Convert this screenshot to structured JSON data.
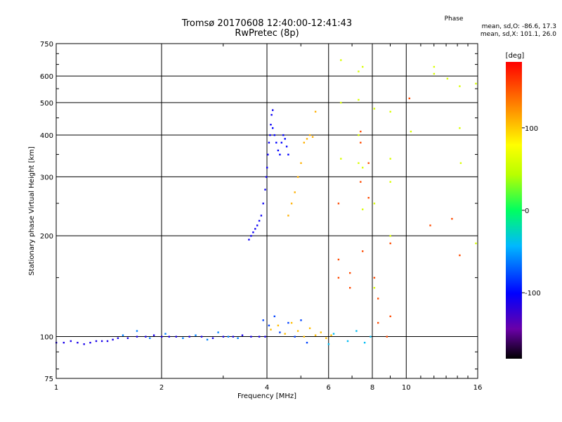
{
  "chart_data": {
    "type": "scatter",
    "title": "Tromsø 20170608 12:40:00-12:41:43",
    "subtitle": "RwPretec (8p)",
    "xlabel": "Frequency [MHz]",
    "ylabel": "Stationary phase Virtual Height [km]",
    "x_scale": "log",
    "y_scale": "log",
    "xlim": [
      1,
      16
    ],
    "ylim": [
      75,
      750
    ],
    "x_ticks": [
      1,
      2,
      4,
      6,
      8,
      10,
      16
    ],
    "x_tick_labels": [
      "1",
      "2",
      "4",
      "6",
      "8",
      "10",
      "16"
    ],
    "y_ticks": [
      75,
      100,
      200,
      300,
      400,
      500,
      600,
      750
    ],
    "y_tick_labels": [
      "75",
      "100",
      "200",
      "300",
      "400",
      "500",
      "600",
      "750"
    ],
    "grid": true,
    "colorbar": {
      "label": "[deg]",
      "range": [
        -180,
        180
      ],
      "ticks": [
        100,
        0,
        -100
      ],
      "tick_labels": [
        "100",
        "0",
        "-100"
      ]
    },
    "phase_summary": {
      "heading": "Phase",
      "o_text": "mean, sd,O: -86.6, 17.3",
      "x_text": "mean, sd,X: 101.1, 26.0"
    },
    "traces": [
      {
        "x": [
          1.0,
          1.05,
          1.1,
          1.15,
          1.2,
          1.25,
          1.3,
          1.35,
          1.4,
          1.45,
          1.5,
          1.6,
          1.7,
          1.8,
          1.9,
          2.0,
          2.1,
          2.2,
          2.4,
          2.6,
          2.8,
          3.0,
          3.2,
          3.4,
          3.6,
          3.8,
          3.95
        ],
        "y": [
          96,
          96,
          97,
          96,
          95,
          96,
          97,
          97,
          97,
          98,
          99,
          99,
          100,
          100,
          101,
          100,
          100,
          100,
          100,
          100,
          99,
          100,
          100,
          101,
          100,
          100,
          100
        ],
        "phase": -110
      },
      {
        "x": [
          1.55,
          1.7,
          1.85,
          2.05,
          2.3,
          2.5,
          2.7,
          2.9,
          3.1,
          3.3
        ],
        "y": [
          101,
          104,
          99,
          102,
          99,
          101,
          98,
          103,
          100,
          99
        ],
        "phase": -60
      },
      {
        "x": [
          3.55,
          3.6,
          3.65,
          3.7,
          3.75,
          3.8,
          3.85,
          3.9,
          3.95,
          3.98,
          4.0,
          4.02,
          4.05,
          4.08,
          4.1,
          4.12,
          4.15
        ],
        "y": [
          195,
          200,
          205,
          210,
          215,
          222,
          230,
          250,
          275,
          300,
          320,
          350,
          380,
          400,
          430,
          460,
          475
        ],
        "phase": -105
      },
      {
        "x": [
          4.15,
          4.2,
          4.25,
          4.3,
          4.35,
          4.4,
          4.45,
          4.5,
          4.55,
          4.6
        ],
        "y": [
          420,
          400,
          380,
          360,
          350,
          380,
          400,
          390,
          370,
          350
        ],
        "phase": -100
      },
      {
        "x": [
          4.6,
          4.7,
          4.8,
          4.9,
          5.0,
          5.1,
          5.2,
          5.3,
          5.4,
          5.5
        ],
        "y": [
          230,
          250,
          270,
          300,
          330,
          380,
          390,
          400,
          395,
          470
        ],
        "phase": 110
      },
      {
        "x": [
          4.1,
          4.3,
          4.5,
          4.7,
          4.9,
          5.1,
          5.3,
          5.5,
          5.7,
          5.9,
          6.1
        ],
        "y": [
          105,
          108,
          102,
          110,
          104,
          100,
          106,
          101,
          103,
          99,
          101
        ],
        "phase": 105
      },
      {
        "x": [
          3.9,
          4.05,
          4.2,
          4.35,
          4.6,
          4.8,
          5.0,
          5.2
        ],
        "y": [
          112,
          108,
          115,
          103,
          110,
          100,
          112,
          96
        ],
        "phase": -80
      },
      {
        "x": [
          6.5,
          6.5,
          6.5,
          7.3,
          7.3,
          7.3,
          7.3,
          7.5,
          7.5,
          7.5,
          8.1,
          8.1,
          8.1,
          9.0,
          9.0,
          9.0,
          9.0,
          10.3,
          12.0,
          12.0,
          13.1,
          14.2,
          14.2,
          14.3,
          15.8,
          15.8
        ],
        "y": [
          670,
          500,
          340,
          620,
          510,
          400,
          330,
          640,
          320,
          240,
          480,
          250,
          140,
          470,
          340,
          290,
          200,
          410,
          640,
          610,
          590,
          560,
          420,
          330,
          570,
          190
        ],
        "phase": 60
      },
      {
        "x": [
          6.4,
          6.4,
          6.4,
          6.9,
          6.9,
          7.4,
          7.4,
          7.4,
          7.5,
          7.8,
          7.8,
          8.1,
          8.3,
          8.3,
          8.8,
          9.0,
          9.0,
          10.2,
          11.7,
          13.5,
          14.2
        ],
        "y": [
          250,
          170,
          150,
          155,
          140,
          410,
          380,
          290,
          180,
          330,
          260,
          150,
          130,
          110,
          100,
          190,
          115,
          515,
          215,
          225,
          175
        ],
        "phase": 150
      },
      {
        "x": [
          6.0,
          6.2,
          6.8,
          7.2,
          7.6,
          7.9
        ],
        "y": [
          95,
          102,
          97,
          104,
          96,
          100
        ],
        "phase": -40
      }
    ]
  }
}
